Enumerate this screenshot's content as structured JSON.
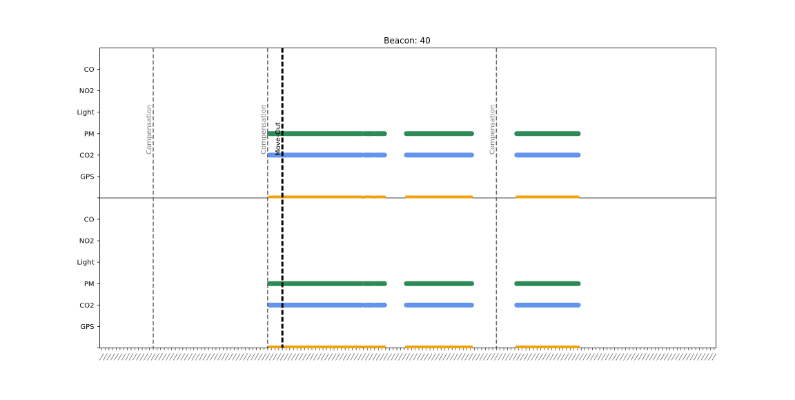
{
  "chart_data": {
    "type": "scatter",
    "title": "Beacon: 40",
    "xlabel": "",
    "ylabel": "",
    "x_range": [
      -0.5,
      166.5
    ],
    "grid": false,
    "legend": "none",
    "x_tick_count": 167,
    "y_categories_top_to_bottom": [
      "CO",
      "NO2",
      "Light",
      "PM",
      "CO2",
      "GPS"
    ],
    "y_values_bottom_to_top": [
      "",
      "GPS",
      "CO2",
      "PM",
      "Light",
      "NO2",
      "CO"
    ],
    "vertical_lines": [
      {
        "x": 14,
        "label": "Compensation",
        "style": "dashed",
        "color": "#696969"
      },
      {
        "x": 45,
        "label": "Compensation",
        "style": "dashed",
        "color": "#696969"
      },
      {
        "x": 49,
        "label": "Move-Out",
        "style": "solid",
        "color": "#000000"
      },
      {
        "x": 107,
        "label": "Compensation",
        "style": "dashed",
        "color": "#696969"
      }
    ],
    "panels": [
      {
        "name": "top",
        "series": [
          {
            "category": "PM",
            "color": "#2e8b57",
            "segments": [
              [
                45.5,
                70.5
              ],
              [
                71.2,
                73.6
              ],
              [
                74.2,
                76.7
              ],
              [
                82.6,
                100.3
              ],
              [
                112.5,
                129.2
              ]
            ]
          },
          {
            "category": "CO2",
            "color": "#6495ed",
            "segments": [
              [
                45.5,
                70.5
              ],
              [
                71.2,
                73.6
              ],
              [
                74.2,
                76.7
              ],
              [
                82.6,
                100.3
              ],
              [
                112.5,
                129.2
              ]
            ]
          },
          {
            "category": "",
            "color": "#f0a30a",
            "segments": [
              [
                45.5,
                70.5
              ],
              [
                71.2,
                73.6
              ],
              [
                74.2,
                76.7
              ],
              [
                82.6,
                100.3
              ],
              [
                112.5,
                129.2
              ]
            ]
          }
        ]
      },
      {
        "name": "bottom",
        "series": [
          {
            "category": "PM",
            "color": "#2e8b57",
            "segments": [
              [
                45.5,
                70.5
              ],
              [
                71.2,
                73.6
              ],
              [
                74.2,
                76.7
              ],
              [
                82.6,
                100.3
              ],
              [
                112.5,
                129.2
              ]
            ]
          },
          {
            "category": "CO2",
            "color": "#6495ed",
            "segments": [
              [
                45.5,
                70.5
              ],
              [
                71.2,
                73.6
              ],
              [
                74.2,
                76.7
              ],
              [
                82.6,
                100.3
              ],
              [
                112.5,
                129.2
              ]
            ]
          },
          {
            "category": "",
            "color": "#f0a30a",
            "segments": [
              [
                45.5,
                70.5
              ],
              [
                71.2,
                73.6
              ],
              [
                74.2,
                76.7
              ],
              [
                82.6,
                100.3
              ],
              [
                112.5,
                129.2
              ]
            ]
          }
        ]
      }
    ]
  }
}
